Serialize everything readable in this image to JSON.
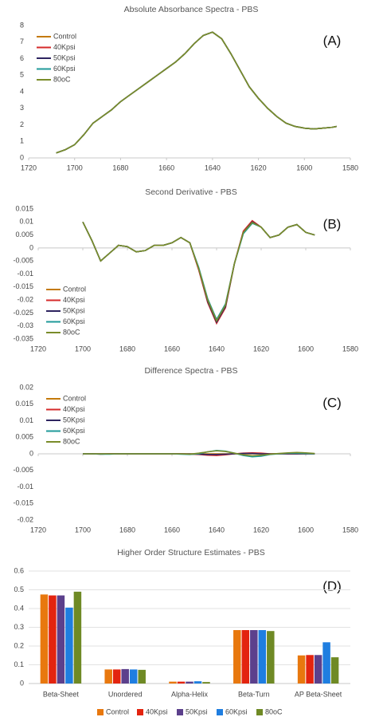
{
  "chart_data": [
    {
      "type": "line",
      "title": "Absolute Absorbance Spectra - PBS",
      "annotation": "(A)",
      "xlim": [
        1720,
        1580
      ],
      "xticks": [
        1720,
        1700,
        1680,
        1660,
        1640,
        1620,
        1600,
        1580
      ],
      "ylim": [
        0,
        8
      ],
      "yticks": [
        0,
        1,
        2,
        3,
        4,
        5,
        6,
        7,
        8
      ],
      "grid": false,
      "legend": "upper left",
      "x": [
        1708,
        1704,
        1700,
        1696,
        1692,
        1688,
        1684,
        1680,
        1676,
        1672,
        1668,
        1664,
        1660,
        1656,
        1652,
        1648,
        1644,
        1640,
        1636,
        1632,
        1628,
        1624,
        1620,
        1616,
        1612,
        1608,
        1604,
        1600,
        1596,
        1592,
        1588,
        1586
      ],
      "series": [
        {
          "name": "Control",
          "color": "#c47a0a",
          "values": [
            0.3,
            0.5,
            0.8,
            1.4,
            2.1,
            2.5,
            2.9,
            3.4,
            3.8,
            4.2,
            4.6,
            5.0,
            5.4,
            5.8,
            6.3,
            6.9,
            7.4,
            7.6,
            7.2,
            6.3,
            5.3,
            4.3,
            3.6,
            3.0,
            2.5,
            2.1,
            1.9,
            1.8,
            1.75,
            1.8,
            1.85,
            1.9
          ]
        },
        {
          "name": "40Kpsi",
          "color": "#d62a2a",
          "values": [
            0.3,
            0.5,
            0.8,
            1.4,
            2.1,
            2.5,
            2.9,
            3.4,
            3.8,
            4.2,
            4.6,
            5.0,
            5.4,
            5.8,
            6.3,
            6.9,
            7.4,
            7.6,
            7.2,
            6.3,
            5.3,
            4.3,
            3.6,
            3.0,
            2.5,
            2.1,
            1.9,
            1.8,
            1.75,
            1.8,
            1.85,
            1.9
          ]
        },
        {
          "name": "50Kpsi",
          "color": "#2e2460",
          "values": [
            0.3,
            0.5,
            0.8,
            1.4,
            2.1,
            2.5,
            2.9,
            3.4,
            3.8,
            4.2,
            4.6,
            5.0,
            5.4,
            5.8,
            6.3,
            6.9,
            7.4,
            7.6,
            7.2,
            6.3,
            5.3,
            4.3,
            3.6,
            3.0,
            2.5,
            2.1,
            1.9,
            1.8,
            1.75,
            1.8,
            1.85,
            1.9
          ]
        },
        {
          "name": "60Kpsi",
          "color": "#1f9a9a",
          "values": [
            0.3,
            0.5,
            0.8,
            1.4,
            2.1,
            2.5,
            2.9,
            3.4,
            3.8,
            4.2,
            4.6,
            5.0,
            5.4,
            5.8,
            6.3,
            6.9,
            7.4,
            7.6,
            7.2,
            6.3,
            5.3,
            4.3,
            3.6,
            3.0,
            2.5,
            2.1,
            1.9,
            1.8,
            1.75,
            1.8,
            1.85,
            1.9
          ]
        },
        {
          "name": "80oC",
          "color": "#7a8c2a",
          "values": [
            0.3,
            0.5,
            0.8,
            1.4,
            2.1,
            2.5,
            2.9,
            3.4,
            3.8,
            4.2,
            4.6,
            5.0,
            5.4,
            5.8,
            6.3,
            6.9,
            7.4,
            7.6,
            7.2,
            6.3,
            5.3,
            4.3,
            3.6,
            3.0,
            2.5,
            2.1,
            1.9,
            1.8,
            1.75,
            1.8,
            1.85,
            1.9
          ]
        }
      ]
    },
    {
      "type": "line",
      "title": "Second Derivative - PBS",
      "annotation": "(B)",
      "xlim": [
        1720,
        1580
      ],
      "xticks": [
        1720,
        1700,
        1680,
        1660,
        1640,
        1620,
        1600,
        1580
      ],
      "ylim": [
        -0.035,
        0.015
      ],
      "yticks": [
        0.015,
        0.01,
        0.005,
        0,
        -0.005,
        -0.01,
        -0.015,
        -0.02,
        -0.025,
        -0.03,
        -0.035
      ],
      "grid": false,
      "legend": "lower left",
      "x": [
        1700,
        1696,
        1692,
        1688,
        1684,
        1680,
        1676,
        1672,
        1668,
        1664,
        1660,
        1656,
        1652,
        1648,
        1644,
        1640,
        1636,
        1632,
        1628,
        1624,
        1620,
        1616,
        1612,
        1608,
        1604,
        1600,
        1596
      ],
      "series": [
        {
          "name": "Control",
          "color": "#c47a0a",
          "values": [
            0.01,
            0.003,
            -0.005,
            -0.002,
            0.001,
            0.0005,
            -0.0015,
            -0.001,
            0.001,
            0.001,
            0.002,
            0.004,
            0.002,
            -0.008,
            -0.02,
            -0.028,
            -0.022,
            -0.006,
            0.006,
            0.01,
            0.008,
            0.004,
            0.005,
            0.008,
            0.009,
            0.006,
            0.005
          ]
        },
        {
          "name": "40Kpsi",
          "color": "#d62a2a",
          "values": [
            0.01,
            0.003,
            -0.005,
            -0.002,
            0.001,
            0.0005,
            -0.0015,
            -0.001,
            0.001,
            0.001,
            0.002,
            0.004,
            0.002,
            -0.0085,
            -0.021,
            -0.029,
            -0.023,
            -0.006,
            0.0065,
            0.0105,
            0.008,
            0.004,
            0.005,
            0.008,
            0.009,
            0.006,
            0.005
          ]
        },
        {
          "name": "50Kpsi",
          "color": "#2e2460",
          "values": [
            0.01,
            0.003,
            -0.005,
            -0.002,
            0.001,
            0.0005,
            -0.0015,
            -0.001,
            0.001,
            0.001,
            0.002,
            0.004,
            0.002,
            -0.008,
            -0.0205,
            -0.0285,
            -0.0225,
            -0.006,
            0.006,
            0.01,
            0.008,
            0.004,
            0.005,
            0.008,
            0.009,
            0.006,
            0.005
          ]
        },
        {
          "name": "60Kpsi",
          "color": "#1f9a9a",
          "values": [
            0.01,
            0.003,
            -0.005,
            -0.002,
            0.001,
            0.0005,
            -0.0015,
            -0.001,
            0.001,
            0.001,
            0.002,
            0.004,
            0.002,
            -0.0075,
            -0.0195,
            -0.0275,
            -0.0215,
            -0.006,
            0.0055,
            0.0095,
            0.008,
            0.004,
            0.005,
            0.008,
            0.009,
            0.006,
            0.005
          ]
        },
        {
          "name": "80oC",
          "color": "#7a8c2a",
          "values": [
            0.01,
            0.003,
            -0.005,
            -0.002,
            0.001,
            0.0005,
            -0.0015,
            -0.001,
            0.001,
            0.001,
            0.002,
            0.004,
            0.002,
            -0.008,
            -0.02,
            -0.028,
            -0.022,
            -0.006,
            0.006,
            0.0098,
            0.008,
            0.004,
            0.005,
            0.008,
            0.009,
            0.006,
            0.005
          ]
        }
      ]
    },
    {
      "type": "line",
      "title": "Difference Spectra - PBS",
      "annotation": "(C)",
      "xlim": [
        1720,
        1580
      ],
      "xticks": [
        1720,
        1700,
        1680,
        1660,
        1640,
        1620,
        1600,
        1580
      ],
      "ylim": [
        -0.02,
        0.02
      ],
      "yticks": [
        0.02,
        0.015,
        0.01,
        0.005,
        0,
        -0.005,
        -0.01,
        -0.015,
        -0.02
      ],
      "grid": false,
      "legend": "upper left",
      "x": [
        1700,
        1696,
        1692,
        1688,
        1684,
        1680,
        1676,
        1672,
        1668,
        1664,
        1660,
        1656,
        1652,
        1648,
        1644,
        1640,
        1636,
        1632,
        1628,
        1624,
        1620,
        1616,
        1612,
        1608,
        1604,
        1600,
        1596
      ],
      "series": [
        {
          "name": "Control",
          "color": "#c47a0a",
          "values": [
            0,
            0,
            0,
            0,
            0,
            0,
            0,
            0,
            0,
            0,
            0,
            0,
            0,
            0,
            0,
            0,
            0,
            0,
            0,
            0,
            0,
            0,
            0,
            0,
            0,
            0,
            0
          ]
        },
        {
          "name": "40Kpsi",
          "color": "#d62a2a",
          "values": [
            0,
            0,
            -0.0001,
            0,
            0,
            0,
            0,
            0,
            0,
            0,
            0,
            0,
            -0.0001,
            -0.0002,
            -0.0004,
            -0.0005,
            -0.0003,
            0,
            0.0002,
            0.0003,
            0.0002,
            0,
            0,
            0,
            0,
            0,
            0
          ]
        },
        {
          "name": "50Kpsi",
          "color": "#2e2460",
          "values": [
            0,
            0,
            0,
            0,
            0,
            0,
            0,
            0,
            0,
            0,
            0,
            0,
            0,
            -0.0001,
            -0.0002,
            -0.0002,
            -0.0001,
            0,
            0.0001,
            0.0001,
            0,
            0,
            0,
            0,
            0,
            0,
            0
          ]
        },
        {
          "name": "60Kpsi",
          "color": "#1f9a9a",
          "values": [
            0,
            0,
            -0.0001,
            -0.0001,
            0,
            0,
            0,
            0,
            0,
            0,
            0,
            -0.0001,
            -0.0002,
            0,
            0.0006,
            0.001,
            0.0008,
            0.0002,
            -0.0005,
            -0.0009,
            -0.0007,
            -0.0002,
            0,
            0.0002,
            0.0002,
            0.0001,
            0
          ]
        },
        {
          "name": "80oC",
          "color": "#7a8c2a",
          "values": [
            0,
            0,
            0,
            0,
            0,
            0,
            0,
            0,
            0,
            0,
            0,
            0,
            -0.0001,
            0.0002,
            0.0006,
            0.0009,
            0.0007,
            0.0002,
            -0.0003,
            -0.0006,
            -0.0004,
            -0.0001,
            0.0001,
            0.0003,
            0.0004,
            0.0003,
            0.0001
          ]
        }
      ]
    },
    {
      "type": "bar",
      "title": "Higher Order Structure Estimates - PBS",
      "annotation": "(D)",
      "categories": [
        "Beta-Sheet",
        "Unordered",
        "Alpha-Helix",
        "Beta-Turn",
        "AP Beta-Sheet"
      ],
      "ylim": [
        0,
        0.6
      ],
      "yticks": [
        0,
        0.1,
        0.2,
        0.3,
        0.4,
        0.5,
        0.6
      ],
      "grid": true,
      "legend": "bottom",
      "series": [
        {
          "name": "Control",
          "color": "#e8780e",
          "values": [
            0.475,
            0.075,
            0.01,
            0.285,
            0.15
          ]
        },
        {
          "name": "40Kpsi",
          "color": "#e3240f",
          "values": [
            0.47,
            0.075,
            0.01,
            0.285,
            0.152
          ]
        },
        {
          "name": "50Kpsi",
          "color": "#5c408c",
          "values": [
            0.47,
            0.077,
            0.01,
            0.285,
            0.152
          ]
        },
        {
          "name": "60Kpsi",
          "color": "#1f7ee0",
          "values": [
            0.405,
            0.075,
            0.012,
            0.285,
            0.22
          ]
        },
        {
          "name": "80oC",
          "color": "#6f8a25",
          "values": [
            0.49,
            0.073,
            0.008,
            0.28,
            0.14
          ]
        }
      ]
    }
  ]
}
